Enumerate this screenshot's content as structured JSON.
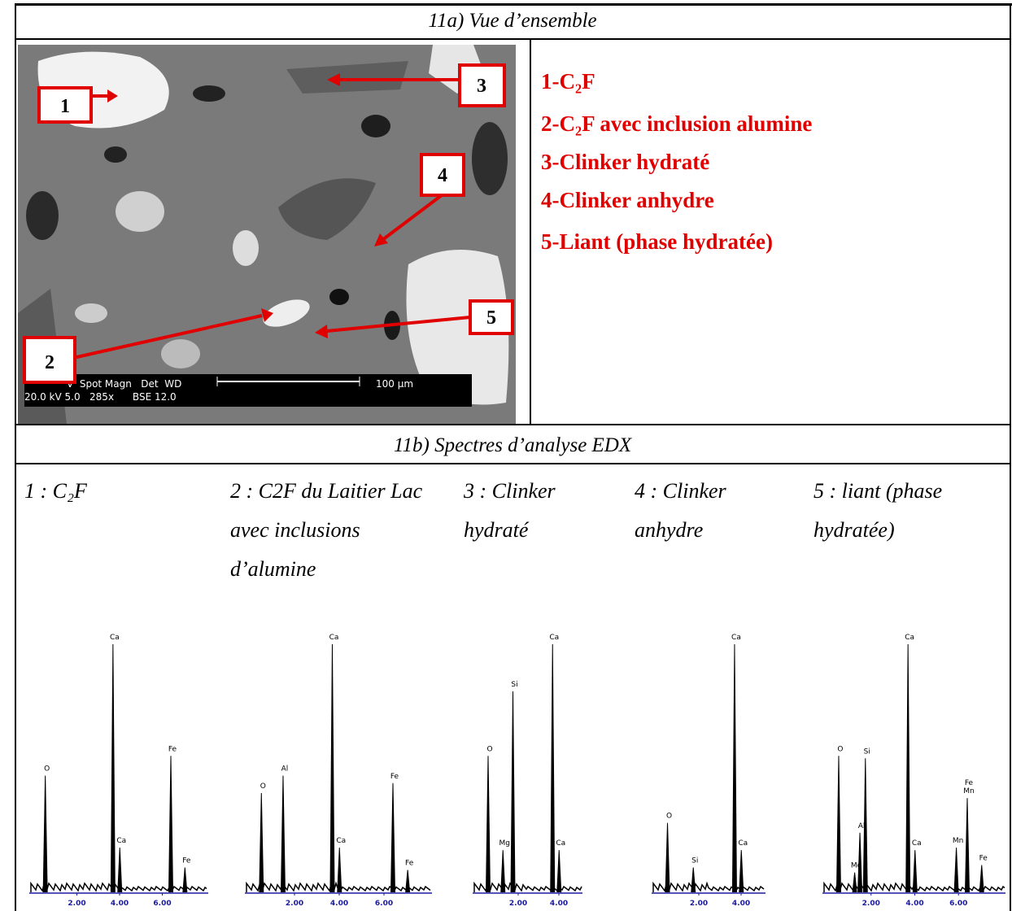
{
  "section_a": {
    "title": "11a) Vue d’ensemble",
    "image": {
      "markers": [
        "1",
        "2",
        "3",
        "4",
        "5"
      ],
      "scale_header": "V  Spot Magn   Det  WD",
      "scale_values": "20.0 kV 5.0   285x      BSE 12.0",
      "scale_length": "100 µm"
    },
    "legend": [
      "1-C₂F",
      "2-C₂F avec inclusion alumine",
      "3-Clinker hydraté",
      "4-Clinker anhydre",
      "5-Liant (phase hydratée)"
    ]
  },
  "section_b": {
    "title": "11b) Spectres d’analyse EDX",
    "spectra": [
      {
        "caption": "1 : C₂F",
        "xlim": [
          0,
          8
        ],
        "xticks": [
          {
            "value": 2,
            "label": "2.00"
          },
          {
            "value": 4,
            "label": "4.00"
          },
          {
            "value": 6,
            "label": "6.00"
          }
        ],
        "peaks": [
          {
            "labels": [
              "O"
            ],
            "energy": 0.52,
            "height": 47
          },
          {
            "labels": [
              "Ca"
            ],
            "energy": 3.69,
            "height": 100
          },
          {
            "labels": [
              "Ca"
            ],
            "energy": 4.01,
            "height": 18
          },
          {
            "labels": [
              "Fe"
            ],
            "energy": 6.4,
            "height": 55
          },
          {
            "labels": [
              "Fe"
            ],
            "energy": 7.06,
            "height": 10
          }
        ]
      },
      {
        "caption": "2 : C2F du Laitier Lac avec inclusions d’alumine",
        "xlim": [
          0,
          8
        ],
        "xticks": [
          {
            "value": 2,
            "label": "2.00"
          },
          {
            "value": 4,
            "label": "4.00"
          },
          {
            "value": 6,
            "label": "6.00"
          }
        ],
        "peaks": [
          {
            "labels": [
              "O"
            ],
            "energy": 0.52,
            "height": 40
          },
          {
            "labels": [
              "Al"
            ],
            "energy": 1.49,
            "height": 47
          },
          {
            "labels": [
              "Ca"
            ],
            "energy": 3.69,
            "height": 100
          },
          {
            "labels": [
              "Ca"
            ],
            "energy": 4.01,
            "height": 18
          },
          {
            "labels": [
              "Fe"
            ],
            "energy": 6.4,
            "height": 44
          },
          {
            "labels": [
              "Fe"
            ],
            "energy": 7.06,
            "height": 9
          }
        ]
      },
      {
        "caption": "3 : Clinker hydraté",
        "xlim": [
          0,
          5
        ],
        "xticks": [
          {
            "value": 2,
            "label": "2.00"
          },
          {
            "value": 4,
            "label": "4.00"
          }
        ],
        "peaks": [
          {
            "labels": [
              "O"
            ],
            "energy": 0.52,
            "height": 55
          },
          {
            "labels": [
              "Mg"
            ],
            "energy": 1.25,
            "height": 17
          },
          {
            "labels": [
              "Si"
            ],
            "energy": 1.74,
            "height": 81
          },
          {
            "labels": [
              "Ca"
            ],
            "energy": 3.69,
            "height": 100
          },
          {
            "labels": [
              "Ca"
            ],
            "energy": 4.01,
            "height": 17
          }
        ]
      },
      {
        "caption": "4 : Clinker anhydre",
        "xlim": [
          0,
          5
        ],
        "xticks": [
          {
            "value": 2,
            "label": "2.00"
          },
          {
            "value": 4,
            "label": "4.00"
          }
        ],
        "peaks": [
          {
            "labels": [
              "O"
            ],
            "energy": 0.52,
            "height": 28
          },
          {
            "labels": [
              "Si"
            ],
            "energy": 1.74,
            "height": 10
          },
          {
            "labels": [
              "Ca"
            ],
            "energy": 3.69,
            "height": 100
          },
          {
            "labels": [
              "Ca"
            ],
            "energy": 4.01,
            "height": 17
          }
        ]
      },
      {
        "caption": "5 : liant (phase hydratée)",
        "xlim": [
          0,
          8
        ],
        "xticks": [
          {
            "value": 2,
            "label": "2.00"
          },
          {
            "value": 4,
            "label": "4.00"
          },
          {
            "value": 6,
            "label": "6.00"
          }
        ],
        "peaks": [
          {
            "labels": [
              "O"
            ],
            "energy": 0.52,
            "height": 55
          },
          {
            "labels": [
              "Mg"
            ],
            "energy": 1.25,
            "height": 8
          },
          {
            "labels": [
              "Al"
            ],
            "energy": 1.49,
            "height": 24
          },
          {
            "labels": [
              "Si"
            ],
            "energy": 1.74,
            "height": 54
          },
          {
            "labels": [
              "Ca"
            ],
            "energy": 3.69,
            "height": 100
          },
          {
            "labels": [
              "Ca"
            ],
            "energy": 4.01,
            "height": 17
          },
          {
            "labels": [
              "Mn"
            ],
            "energy": 5.9,
            "height": 18
          },
          {
            "labels": [
              "Fe",
              "Mn"
            ],
            "energy": 6.4,
            "height": 38
          },
          {
            "labels": [
              "Fe"
            ],
            "energy": 7.06,
            "height": 11
          }
        ]
      }
    ]
  }
}
